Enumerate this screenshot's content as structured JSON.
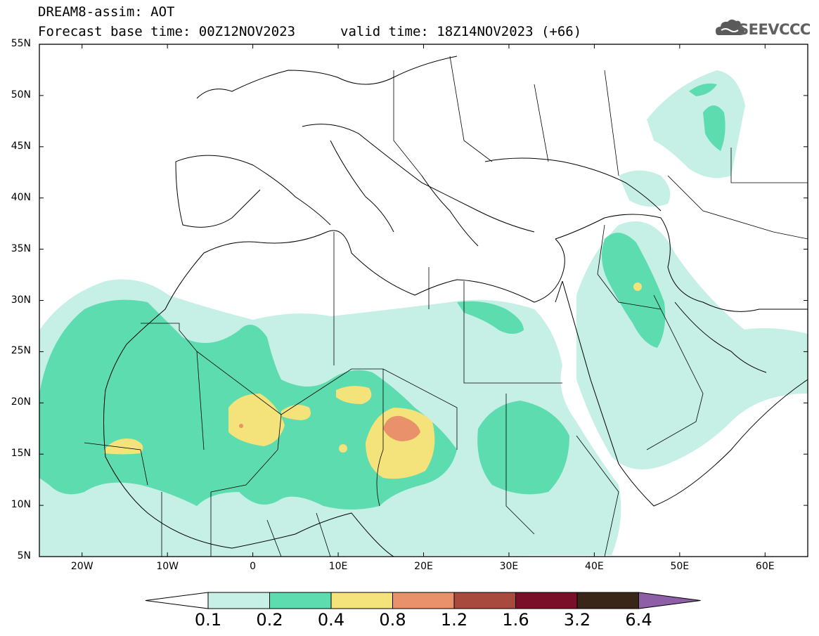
{
  "header": {
    "line1": "DREAM8-assim: AOT",
    "line2_base": "Forecast base time: 00Z12NOV2023",
    "line2_valid": "valid time: 18Z14NOV2023 (+66)"
  },
  "logo": {
    "text": "SEEVCCC",
    "icon": "cloud-icon"
  },
  "map": {
    "lon_range": [
      -25,
      65
    ],
    "lat_range": [
      5,
      55
    ],
    "lat_ticks": [
      "55N",
      "50N",
      "45N",
      "40N",
      "35N",
      "30N",
      "25N",
      "20N",
      "15N",
      "10N",
      "5N"
    ],
    "lon_ticks": [
      "20W",
      "10W",
      "0",
      "10E",
      "20E",
      "30E",
      "40E",
      "50E",
      "60E"
    ]
  },
  "colorbar": {
    "levels": [
      "0.1",
      "0.2",
      "0.4",
      "0.8",
      "1.2",
      "1.6",
      "3.2",
      "6.4"
    ],
    "colors": [
      "#c6f0e6",
      "#5ddcb0",
      "#f4e27a",
      "#e8916b",
      "#a84a3e",
      "#7a0f2a",
      "#3a2618",
      "#8e5fa6"
    ],
    "under_color": "#ffffff"
  }
}
